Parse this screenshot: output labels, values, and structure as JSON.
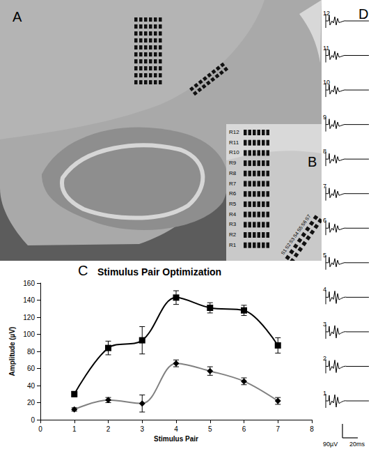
{
  "panel_a": {
    "letter": "A"
  },
  "panel_b": {
    "letter": "B",
    "row_labels": [
      "R12",
      "R11",
      "R10",
      "R9",
      "R8",
      "R7",
      "R6",
      "R5",
      "R4",
      "R3",
      "R2",
      "R1"
    ],
    "stimulus_labels": [
      "S1",
      "S2",
      "S3",
      "S4",
      "S5",
      "S6",
      "S7"
    ]
  },
  "chart_data": {
    "type": "line",
    "letter": "C",
    "title": "Stimulus Pair Optimization",
    "x_label": "Stimulus Pair",
    "y_label": "Amplitude (µV)",
    "x": [
      1,
      2,
      3,
      4,
      5,
      6,
      7
    ],
    "xlim": [
      0,
      8
    ],
    "xticks": [
      0,
      1,
      2,
      3,
      4,
      5,
      6,
      7,
      8
    ],
    "ylim": [
      0,
      160
    ],
    "yticks": [
      0,
      20,
      40,
      60,
      80,
      100,
      120,
      140,
      160
    ],
    "grid": false,
    "series": [
      {
        "color": "#000000",
        "marker": "square",
        "line_style": "solid",
        "values": [
          30,
          84,
          93,
          143,
          131,
          128,
          87
        ],
        "errors": [
          3,
          8,
          16,
          8,
          6,
          6,
          9
        ]
      },
      {
        "color": "#808080",
        "marker": "diamond",
        "line_style": "solid",
        "values": [
          12,
          23,
          19,
          66,
          57,
          45,
          22
        ],
        "errors": [
          2,
          3,
          10,
          4,
          5,
          4,
          4
        ]
      }
    ]
  },
  "panel_d": {
    "letter": "D",
    "trace_labels": [
      "12",
      "11",
      "10",
      "9",
      "8",
      "7",
      "6",
      "5",
      "4",
      "3",
      "2",
      "1"
    ],
    "scale_bar": {
      "amplitude": "90µV",
      "time": "20ms"
    }
  }
}
